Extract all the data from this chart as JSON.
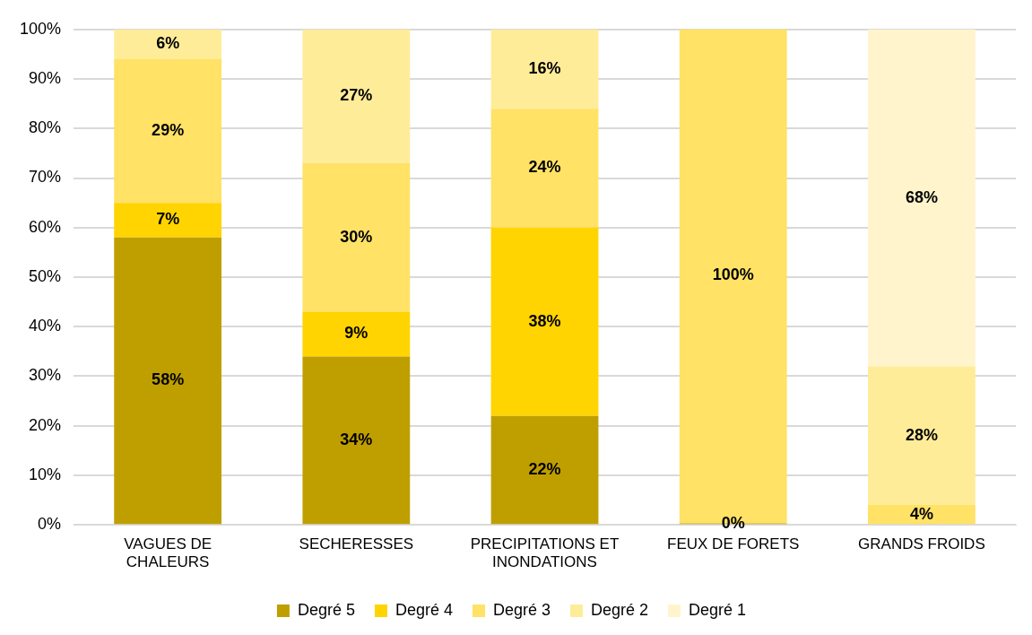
{
  "chart_data": {
    "type": "bar",
    "stacked": true,
    "categories": [
      "VAGUES DE CHALEURS",
      "SECHERESSES",
      "PRECIPITATIONS ET INONDATIONS",
      "FEUX DE FORETS",
      "GRANDS FROIDS"
    ],
    "series": [
      {
        "name": "Degré 5",
        "color": "#bf9f00",
        "values": [
          58,
          34,
          22,
          0.3,
          null
        ],
        "value_labels": [
          "58%",
          "34%",
          "22%",
          "0%",
          null
        ]
      },
      {
        "name": "Degré 4",
        "color": "#ffd400",
        "values": [
          7,
          9,
          38,
          null,
          null
        ],
        "value_labels": [
          "7%",
          "9%",
          "38%",
          null,
          null
        ]
      },
      {
        "name": "Degré 3",
        "color": "#ffe266",
        "values": [
          29,
          30,
          24,
          100,
          4
        ],
        "value_labels": [
          "29%",
          "30%",
          "24%",
          "100%",
          "4%"
        ]
      },
      {
        "name": "Degré 2",
        "color": "#ffec99",
        "values": [
          6,
          27,
          16,
          null,
          28
        ],
        "value_labels": [
          "6%",
          "27%",
          "16%",
          null,
          "28%"
        ]
      },
      {
        "name": "Degré 1",
        "color": "#fff4cc",
        "values": [
          null,
          null,
          null,
          null,
          68
        ],
        "value_labels": [
          null,
          null,
          null,
          null,
          "68%"
        ]
      }
    ],
    "ylim": [
      0,
      100
    ],
    "yticks": [
      {
        "value": 0,
        "label": "0%"
      },
      {
        "value": 10,
        "label": "10%"
      },
      {
        "value": 20,
        "label": "20%"
      },
      {
        "value": 30,
        "label": "30%"
      },
      {
        "value": 40,
        "label": "40%"
      },
      {
        "value": 50,
        "label": "50%"
      },
      {
        "value": 60,
        "label": "60%"
      },
      {
        "value": 70,
        "label": "70%"
      },
      {
        "value": 80,
        "label": "80%"
      },
      {
        "value": 90,
        "label": "90%"
      },
      {
        "value": 100,
        "label": "100%"
      }
    ],
    "grid": "y",
    "legend": "bottom"
  }
}
